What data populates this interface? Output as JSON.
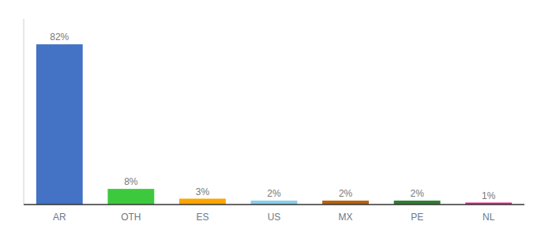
{
  "chart_data": {
    "type": "bar",
    "categories": [
      "AR",
      "OTH",
      "ES",
      "US",
      "MX",
      "PE",
      "NL"
    ],
    "values": [
      82,
      8,
      3,
      2,
      2,
      2,
      1
    ],
    "value_labels": [
      "82%",
      "8%",
      "3%",
      "2%",
      "2%",
      "2%",
      "1%"
    ],
    "colors": [
      "#4472C4",
      "#3DC93D",
      "#FFA500",
      "#87CEEB",
      "#B8620A",
      "#2E7D32",
      "#E91E8C"
    ],
    "ylim": [
      0,
      95
    ],
    "grid": false,
    "data_labels": true,
    "tick_labels": "x"
  }
}
